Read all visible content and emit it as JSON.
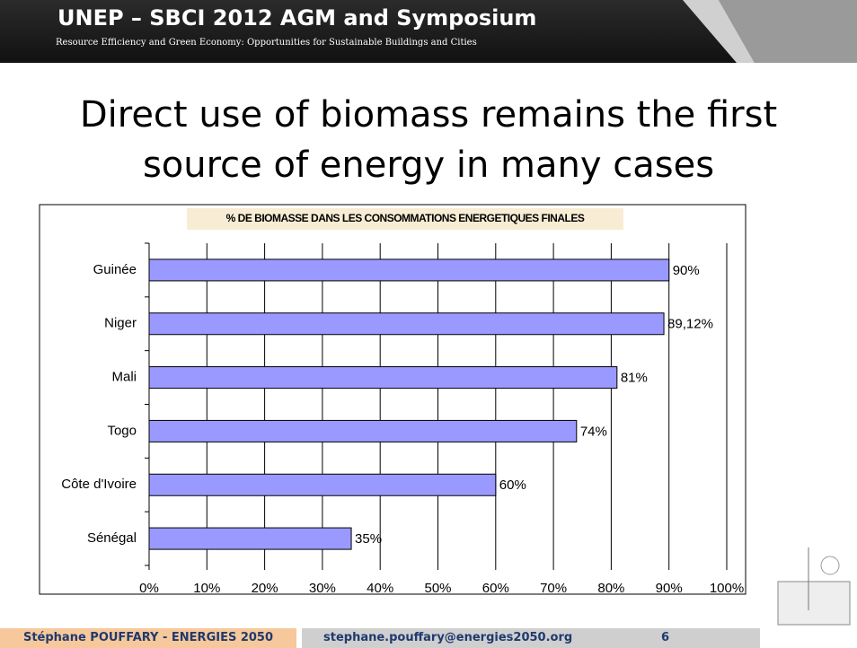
{
  "header": {
    "title": "UNEP – SBCI 2012 AGM and Symposium",
    "subtitle": "Resource Efficiency and Green Economy: Opportunities for Sustainable Buildings and Cities"
  },
  "slide": {
    "title": "Direct use of biomass remains the first source of energy in many cases"
  },
  "chart_data": {
    "type": "bar",
    "orientation": "horizontal",
    "title": "% DE BIOMASSE DANS LES CONSOMMATIONS ENERGETIQUES FINALES",
    "categories": [
      "Guinée",
      "Niger",
      "Mali",
      "Togo",
      "Côte d'Ivoire",
      "Sénégal"
    ],
    "values": [
      90,
      89.12,
      81,
      74,
      60,
      35
    ],
    "value_labels": [
      "90%",
      "89,12%",
      "81%",
      "74%",
      "60%",
      "35%"
    ],
    "color": "#9999ff",
    "xlim": [
      0,
      100
    ],
    "xticks": [
      {
        "value": 0,
        "label": "0%"
      },
      {
        "value": 10,
        "label": "10%"
      },
      {
        "value": 20,
        "label": "20%"
      },
      {
        "value": 30,
        "label": "30%"
      },
      {
        "value": 40,
        "label": "40%"
      },
      {
        "value": 50,
        "label": "50%"
      },
      {
        "value": 60,
        "label": "60%"
      },
      {
        "value": 70,
        "label": "70%"
      },
      {
        "value": 80,
        "label": "80%"
      },
      {
        "value": 90,
        "label": "90%"
      },
      {
        "value": 100,
        "label": "100%"
      }
    ],
    "grid": true
  },
  "footer": {
    "author": "Stéphane POUFFARY - ENERGIES 2050",
    "email": "stephane.pouffary@energies2050.org",
    "page": 6
  }
}
